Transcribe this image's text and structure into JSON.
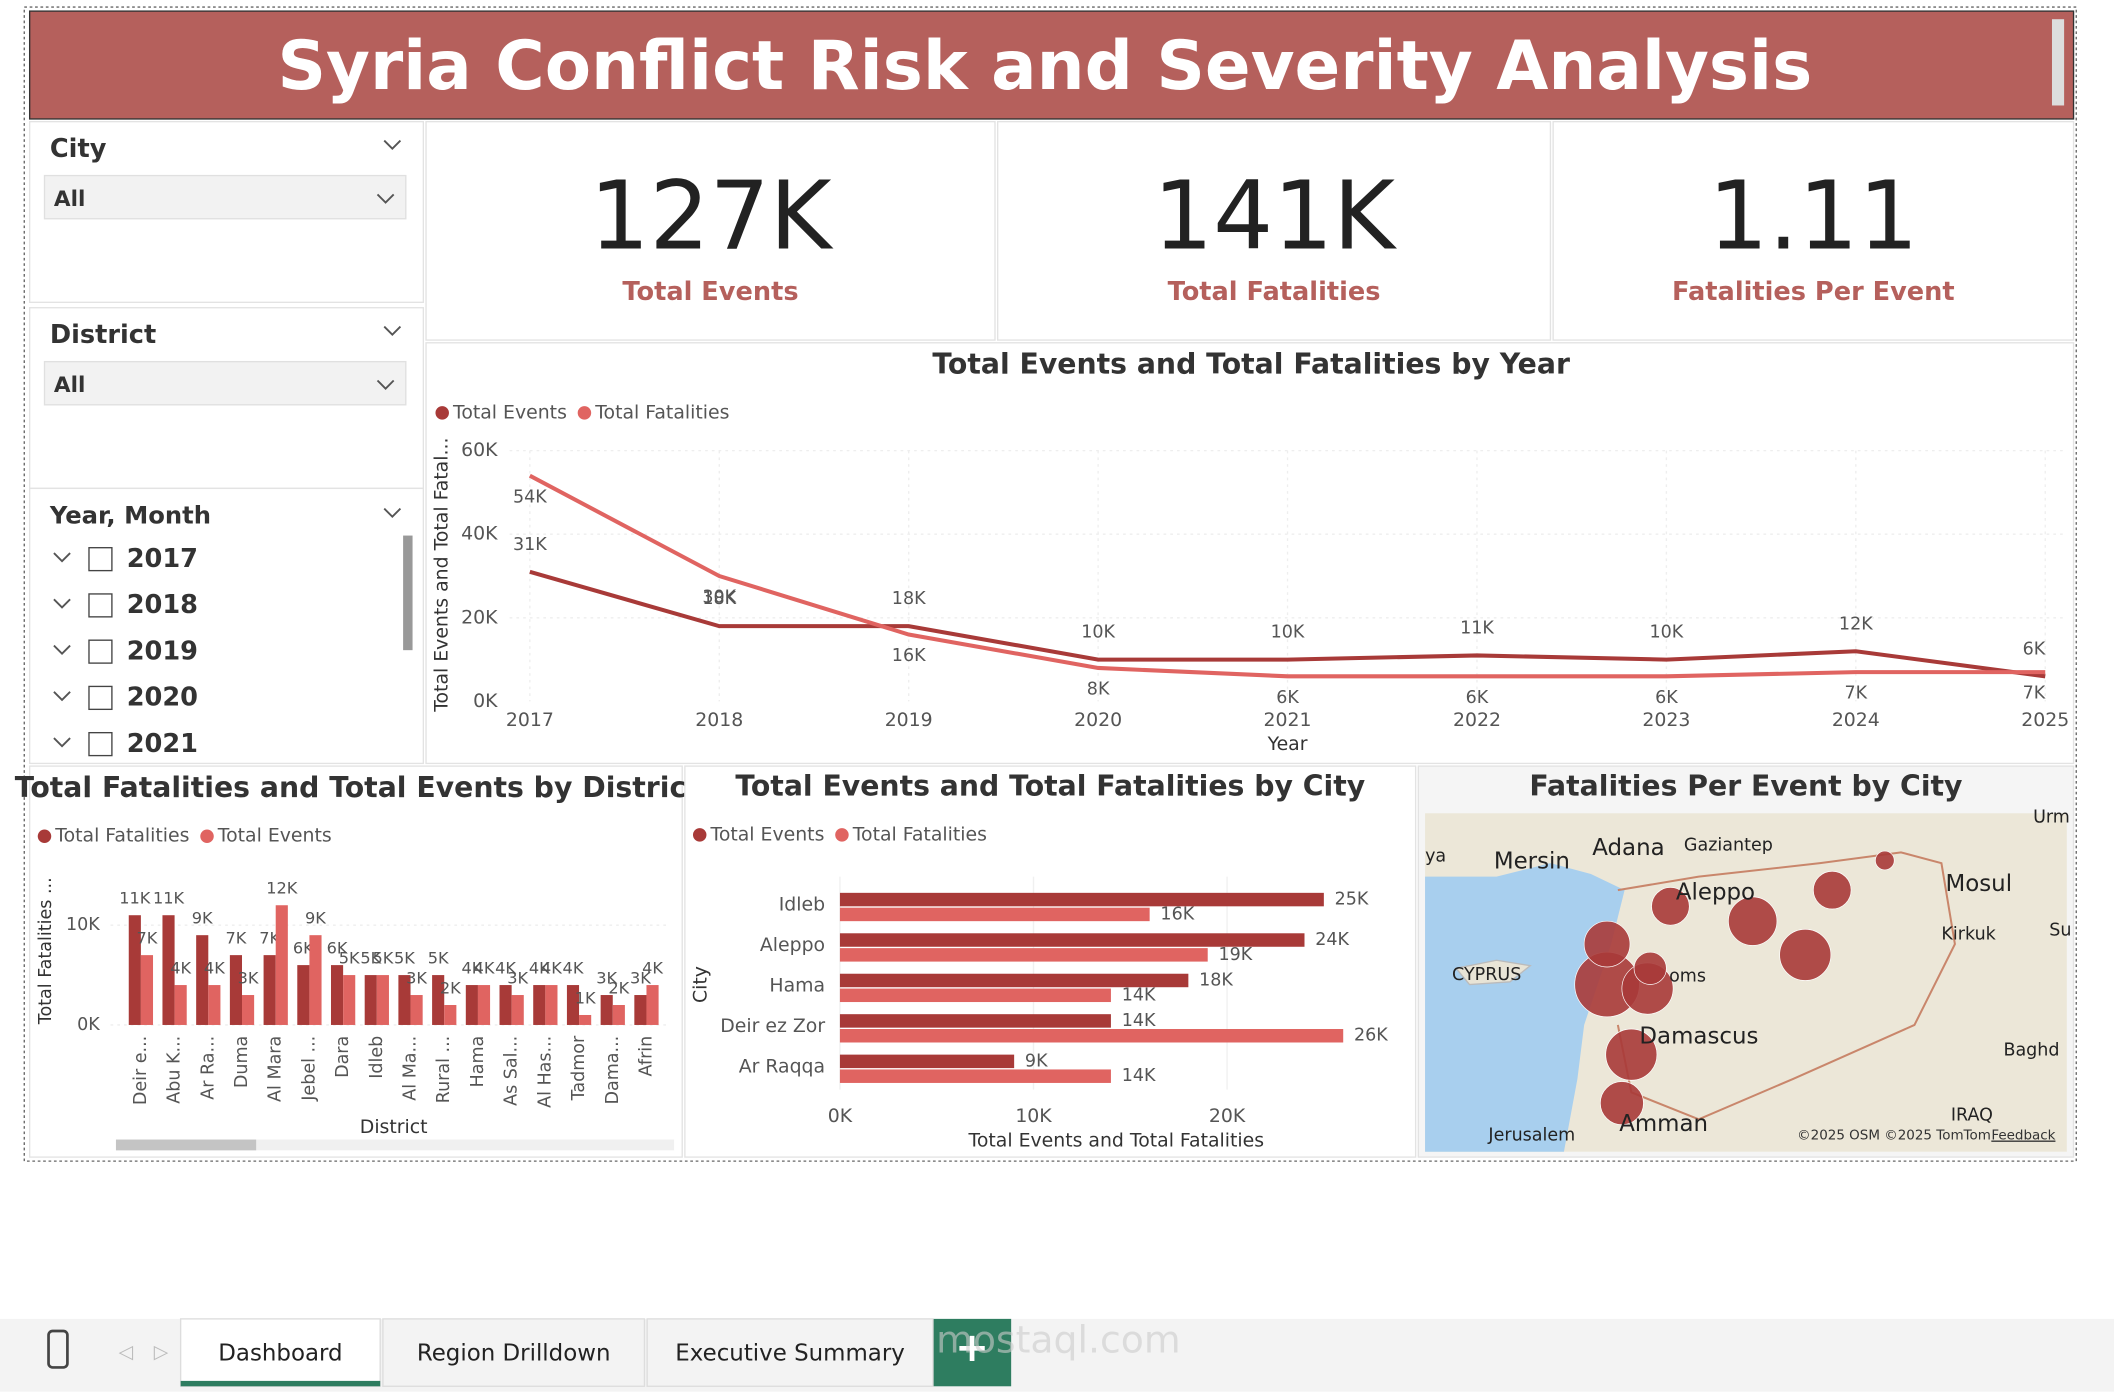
{
  "header": {
    "title": "Syria Conflict Risk and Severity Analysis"
  },
  "slicers": [
    {
      "title": "City",
      "value": "All"
    },
    {
      "title": "District",
      "value": "All"
    }
  ],
  "year_slicer": {
    "title": "Year, Month",
    "items": [
      "2017",
      "2018",
      "2019",
      "2020",
      "2021"
    ]
  },
  "kpis": [
    {
      "value": "127K",
      "label": "Total Events"
    },
    {
      "value": "141K",
      "label": "Total Fatalities"
    },
    {
      "value": "1.11",
      "label": "Fatalities Per Event"
    }
  ],
  "chart_data": [
    {
      "type": "line",
      "title": "Total Events and Total Fatalities by Year",
      "x_label": "Year",
      "y_label": "Total Events and Total Fatal...",
      "categories": [
        "2017",
        "2018",
        "2019",
        "2020",
        "2021",
        "2022",
        "2023",
        "2024",
        "2025"
      ],
      "series": [
        {
          "name": "Total Events",
          "color": "#a83a38",
          "values": [
            31000,
            18000,
            18000,
            10000,
            10000,
            11000,
            10000,
            12000,
            6000
          ],
          "value_labels": [
            "31K",
            "18K",
            "18K",
            "10K",
            "10K",
            "11K",
            "10K",
            "12K",
            "6K"
          ]
        },
        {
          "name": "Total Fatalities",
          "color": "#e06461",
          "values": [
            54000,
            30000,
            16000,
            8000,
            6000,
            6000,
            6000,
            7000,
            7000
          ],
          "value_labels": [
            "54K",
            "30K",
            "16K",
            "8K",
            "6K",
            "6K",
            "6K",
            "7K",
            "7K"
          ]
        }
      ],
      "ylim": [
        0,
        60000
      ],
      "yticks": [
        {
          "value": 0,
          "label": "0K"
        },
        {
          "value": 20000,
          "label": "20K"
        },
        {
          "value": 40000,
          "label": "40K"
        },
        {
          "value": 60000,
          "label": "60K"
        }
      ],
      "grid": true
    },
    {
      "type": "bar",
      "title": "Total Fatalities and Total Events by District",
      "x_label": "District",
      "y_label": "Total Fatalities ...",
      "categories": [
        "Deir e...",
        "Abu K...",
        "Ar Ra...",
        "Duma",
        "Al Mara",
        "Jebel ...",
        "Dara",
        "Idleb",
        "Al Ma...",
        "Rural ...",
        "Hama",
        "As Sal...",
        "Al Has...",
        "Tadmor",
        "Dama...",
        "Afrin"
      ],
      "series": [
        {
          "name": "Total Fatalities",
          "color": "#a83a38",
          "values": [
            11000,
            11000,
            9000,
            7000,
            7000,
            6000,
            6000,
            5000,
            5000,
            5000,
            4000,
            4000,
            4000,
            4000,
            3000,
            3000
          ],
          "value_labels": [
            "11K",
            "11K",
            "9K",
            "7K",
            "7K",
            "6K",
            "6K",
            "5K",
            "5K",
            "5K",
            "4K",
            "4K",
            "4K",
            "4K",
            "3K",
            "3K"
          ]
        },
        {
          "name": "Total Events",
          "color": "#e06461",
          "values": [
            7000,
            4000,
            4000,
            3000,
            12000,
            9000,
            5000,
            5000,
            3000,
            2000,
            4000,
            3000,
            4000,
            1000,
            2000,
            4000
          ],
          "value_labels": [
            "7K",
            "4K",
            "4K",
            "3K",
            "12K",
            "9K",
            "5K",
            "5K",
            "3K",
            "2K",
            "4K",
            "3K",
            "4K",
            "1K",
            "2K",
            "4K"
          ]
        }
      ],
      "ylim": [
        0,
        15000
      ],
      "yticks": [
        {
          "value": 0,
          "label": "0K"
        },
        {
          "value": 10000,
          "label": "10K"
        }
      ]
    },
    {
      "type": "hbar",
      "title": "Total Events and Total Fatalities by City",
      "x_label": "Total Events and Total Fatalities",
      "y_label": "City",
      "categories": [
        "Idleb",
        "Aleppo",
        "Hama",
        "Deir ez Zor",
        "Ar Raqqa"
      ],
      "series": [
        {
          "name": "Total Events",
          "color": "#a83a38",
          "values": [
            25000,
            24000,
            18000,
            14000,
            9000
          ],
          "value_labels": [
            "25K",
            "24K",
            "18K",
            "14K",
            "9K"
          ]
        },
        {
          "name": "Total Fatalities",
          "color": "#e06461",
          "values": [
            16000,
            19000,
            14000,
            26000,
            14000
          ],
          "value_labels": [
            "16K",
            "19K",
            "14K",
            "26K",
            "14K"
          ]
        }
      ],
      "xlim": [
        0,
        28000
      ],
      "xticks": [
        {
          "value": 0,
          "label": "0K"
        },
        {
          "value": 10000,
          "label": "10K"
        },
        {
          "value": 20000,
          "label": "20K"
        }
      ]
    }
  ],
  "map": {
    "title": "Fatalities Per Event by City",
    "labels": [
      "Mersin",
      "Adana",
      "Gaziantep",
      "Aleppo",
      "Mosul",
      "Kirkuk",
      "CYPRUS",
      "oms",
      "Damascus",
      "Baghd",
      "Jerusalem",
      "Amman",
      "IRAQ",
      "Urm",
      "ya",
      "Su"
    ],
    "attribution": "©2025 OSM  ©2025 TomTom",
    "feedback": "Feedback"
  },
  "tabs": [
    "Dashboard",
    "Region Drilldown",
    "Executive Summary"
  ],
  "watermark": "mostaql.com"
}
